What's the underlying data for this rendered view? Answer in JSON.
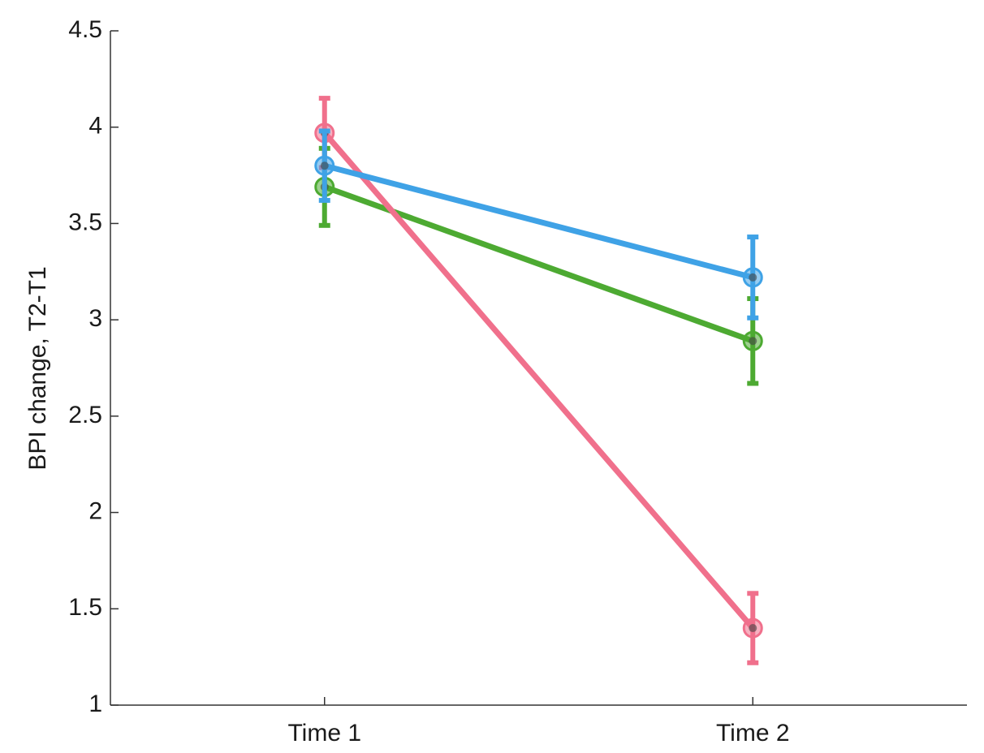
{
  "chart_data": {
    "type": "line",
    "y_label": "BPI change, T2-T1",
    "categories": [
      "Time 1",
      "Time 2"
    ],
    "series": [
      {
        "color": "#4daa32",
        "values": [
          3.69,
          2.89
        ],
        "errors": [
          0.2,
          0.22
        ]
      },
      {
        "color": "#f0708c",
        "values": [
          3.97,
          1.4
        ],
        "errors": [
          0.18,
          0.18
        ]
      },
      {
        "color": "#3fa2e6",
        "values": [
          3.8,
          3.22
        ],
        "errors": [
          0.18,
          0.21
        ]
      }
    ],
    "ylim": [
      1,
      4.5
    ],
    "yticks": [
      1,
      1.5,
      2,
      2.5,
      3,
      3.5,
      4,
      4.5
    ]
  }
}
